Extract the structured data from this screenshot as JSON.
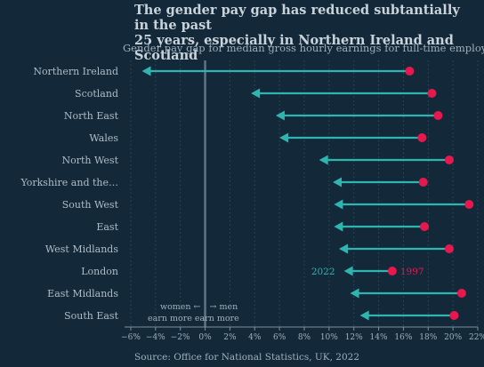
{
  "title": [
    "The gender pay gap has reduced subtantially in the past",
    "25 years, especially in Northern Ireland and Scotland"
  ],
  "subtitle": "Gender pay gap for median gross hourly earnings for full-time employees",
  "source": "Source: Office for National Statistics, UK, 2022",
  "colors": {
    "background": "#13293a",
    "start": "#e8184f",
    "end": "#2fb5b0",
    "zero_line": "#5d7585",
    "grid": "#2f4b5e"
  },
  "chart_data": {
    "type": "dumbbell-arrow",
    "xlim": [
      -6.5,
      22
    ],
    "x_ticks": [
      -6,
      -4,
      -2,
      0,
      2,
      4,
      6,
      8,
      10,
      12,
      14,
      16,
      18,
      20,
      22
    ],
    "x_tick_labels": [
      "−6%",
      "−4%",
      "−2%",
      "0%",
      "2%",
      "4%",
      "6%",
      "8%",
      "10%",
      "12%",
      "14%",
      "16%",
      "18%",
      "20%",
      "22%"
    ],
    "categories": [
      "Northern Ireland",
      "Scotland",
      "North East",
      "Wales",
      "North West",
      "Yorkshire and the…",
      "South West",
      "East",
      "West Midlands",
      "London",
      "East Midlands",
      "South East"
    ],
    "series": [
      {
        "name": "1997",
        "values": [
          16.5,
          18.3,
          18.8,
          17.5,
          19.7,
          17.6,
          21.3,
          17.7,
          19.7,
          15.1,
          20.7,
          20.1
        ]
      },
      {
        "name": "2022",
        "values": [
          -5.1,
          3.7,
          5.7,
          6.0,
          9.2,
          10.3,
          10.4,
          10.4,
          10.8,
          11.2,
          11.7,
          12.5
        ]
      }
    ],
    "series_labels_row": "London",
    "annotation": {
      "left_line1": "women ←",
      "right_line1": "→ men",
      "line2": "earn more earn more"
    }
  }
}
